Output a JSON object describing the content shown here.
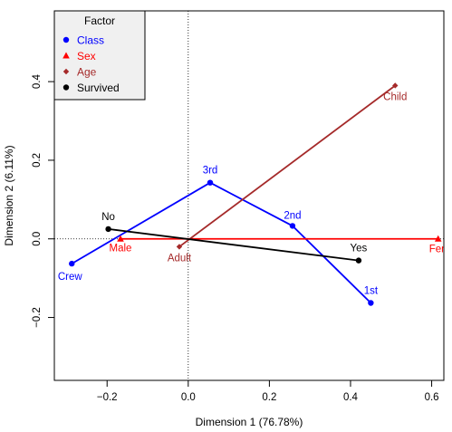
{
  "chart_data": {
    "type": "scatter",
    "title": "",
    "xlabel": "Dimension 1 (76.78%)",
    "ylabel": "Dimension 2 (6.11%)",
    "xlim": [
      -0.33,
      0.63
    ],
    "ylim": [
      -0.36,
      0.58
    ],
    "xticks": [
      -0.2,
      0.0,
      0.2,
      0.4,
      0.6
    ],
    "yticks": [
      -0.2,
      0.0,
      0.2,
      0.4
    ],
    "xtick_labels": [
      "−0.2",
      "0.0",
      "0.2",
      "0.4",
      "0.6"
    ],
    "ytick_labels": [
      "−0.2",
      "0.0",
      "0.2",
      "0.4"
    ],
    "reference_lines": {
      "x": 0,
      "y": 0,
      "style": "dotted"
    },
    "legend": {
      "title": "Factor",
      "placement": "top-left"
    },
    "series": [
      {
        "name": "Class",
        "color": "#0000ff",
        "marker": "circle",
        "connect": true,
        "points": [
          {
            "label": "Crew",
            "x": -0.287,
            "y": -0.063
          },
          {
            "label": "3rd",
            "x": 0.054,
            "y": 0.143
          },
          {
            "label": "2nd",
            "x": 0.257,
            "y": 0.033
          },
          {
            "label": "1st",
            "x": 0.45,
            "y": -0.163
          }
        ]
      },
      {
        "name": "Sex",
        "color": "#ff0000",
        "marker": "triangle",
        "connect": true,
        "points": [
          {
            "label": "Male",
            "x": -0.167,
            "y": 0.0
          },
          {
            "label": "Female",
            "x": 0.616,
            "y": 0.0
          }
        ]
      },
      {
        "name": "Age",
        "color": "#a52a2a",
        "marker": "diamond",
        "connect": true,
        "points": [
          {
            "label": "Adult",
            "x": -0.022,
            "y": -0.02
          },
          {
            "label": "Child",
            "x": 0.51,
            "y": 0.39
          }
        ]
      },
      {
        "name": "Survived",
        "color": "#000000",
        "marker": "circle",
        "connect": true,
        "points": [
          {
            "label": "No",
            "x": -0.197,
            "y": 0.025
          },
          {
            "label": "Yes",
            "x": 0.42,
            "y": -0.055
          }
        ]
      }
    ]
  }
}
